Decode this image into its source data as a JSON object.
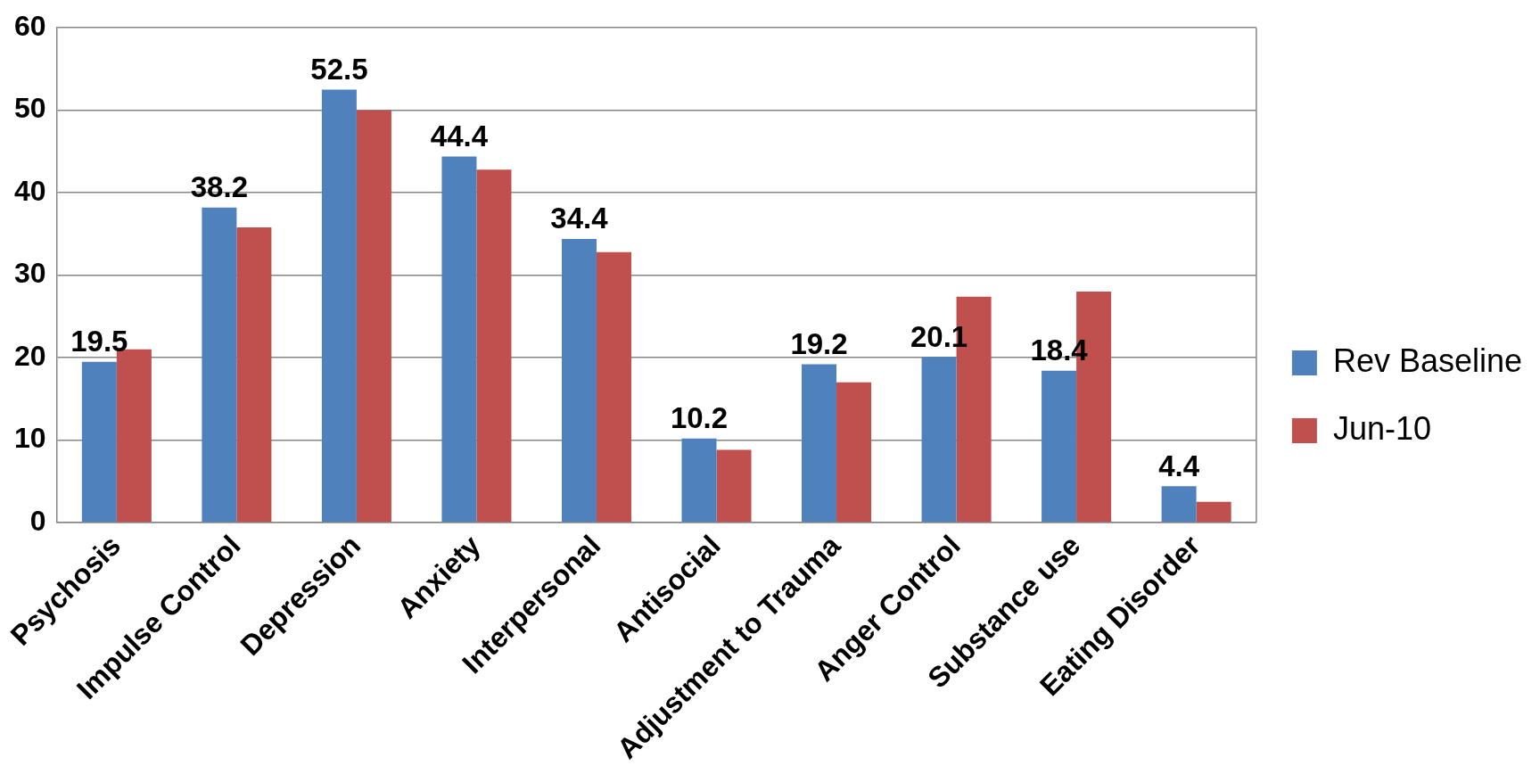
{
  "chart_data": {
    "type": "bar",
    "categories": [
      "Psychosis",
      "Impulse Control",
      "Depression",
      "Anxiety",
      "Interpersonal",
      "Antisocial",
      "Adjustment to Trauma",
      "Anger Control",
      "Substance use",
      "Eating Disorder"
    ],
    "series": [
      {
        "name": "Rev Baseline",
        "color": "#4f81bd",
        "values": [
          19.5,
          38.2,
          52.5,
          44.4,
          34.4,
          10.2,
          19.2,
          20.1,
          18.4,
          4.4
        ],
        "value_labels": [
          "19.5",
          "38.2",
          "52.5",
          "44.4",
          "34.4",
          "10.2",
          "19.2",
          "20.1",
          "18.4",
          "4.4"
        ]
      },
      {
        "name": "Jun-10",
        "color": "#c0504d",
        "values": [
          21,
          35.8,
          50,
          42.8,
          32.8,
          8.8,
          17,
          27.4,
          28,
          2.5
        ]
      }
    ],
    "ylim": [
      0,
      60
    ],
    "yticks": [
      0,
      10,
      20,
      30,
      40,
      50,
      60
    ],
    "grid": "y",
    "legend": "right"
  }
}
